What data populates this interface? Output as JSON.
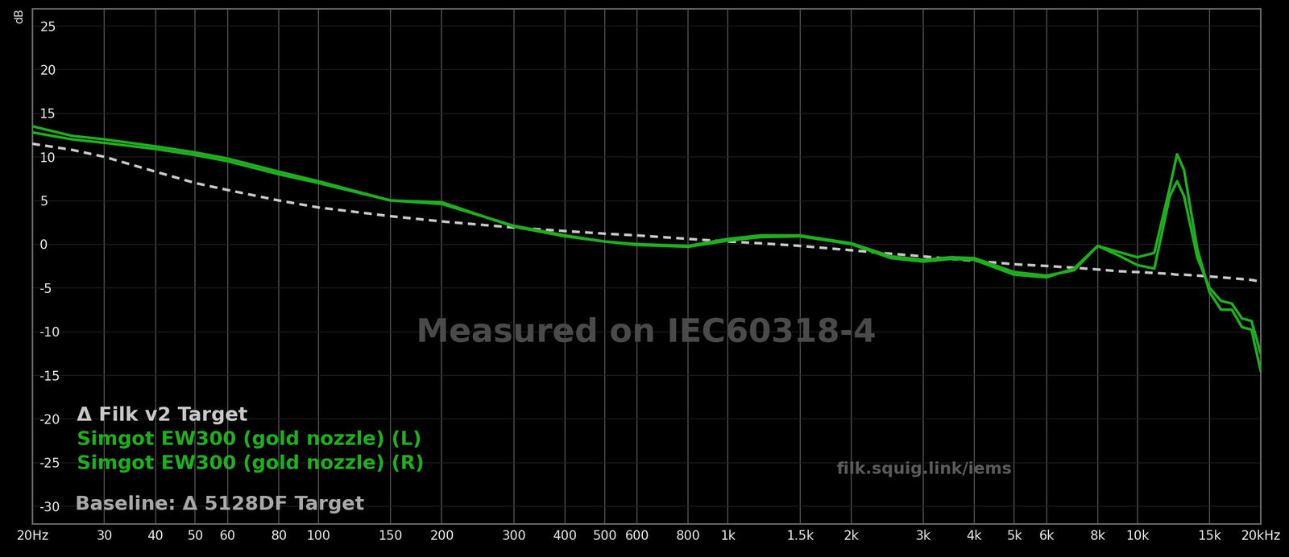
{
  "chart_data": {
    "type": "line",
    "y_label": "dB",
    "annotations": [
      "Measured on IEC60318-4",
      "Baseline: Δ 5128DF Target",
      "filk.squig.link/iems"
    ],
    "log": "x",
    "grid": true,
    "legend": "lower left",
    "xlim": [
      20,
      20000
    ],
    "ylim": [
      -32,
      27
    ],
    "xticks": [
      {
        "value": 20,
        "label": "20Hz"
      },
      30,
      40,
      50,
      60,
      80,
      100,
      150,
      200,
      300,
      400,
      500,
      600,
      800,
      {
        "value": 1000,
        "label": "1k"
      },
      {
        "value": 1500,
        "label": "1.5k"
      },
      {
        "value": 2000,
        "label": "2k"
      },
      {
        "value": 3000,
        "label": "3k"
      },
      {
        "value": 4000,
        "label": "4k"
      },
      {
        "value": 5000,
        "label": "5k"
      },
      {
        "value": 6000,
        "label": "6k"
      },
      {
        "value": 8000,
        "label": "8k"
      },
      {
        "value": 10000,
        "label": "10k"
      },
      {
        "value": 15000,
        "label": "15k"
      },
      {
        "value": 20000,
        "label": "20kHz"
      }
    ],
    "yticks": [
      -30,
      -25,
      -20,
      -15,
      -10,
      -5,
      0,
      5,
      10,
      15,
      20,
      25
    ],
    "x": [
      20,
      25,
      30,
      40,
      50,
      60,
      80,
      100,
      150,
      200,
      300,
      400,
      500,
      600,
      800,
      1000,
      1200,
      1500,
      2000,
      2500,
      3000,
      3500,
      4000,
      5000,
      6000,
      7000,
      8000,
      9000,
      10000,
      11000,
      12000,
      12500,
      13000,
      14000,
      15000,
      16000,
      17000,
      18000,
      19000,
      20000
    ],
    "series": [
      {
        "name": "Δ Filk v2 Target",
        "color": "#c8c8c8",
        "line_style": "dashed",
        "values": [
          11.5,
          10.8,
          10.0,
          8.3,
          7.0,
          6.2,
          5.0,
          4.2,
          3.2,
          2.6,
          1.9,
          1.5,
          1.2,
          1.0,
          0.6,
          0.3,
          0.1,
          -0.2,
          -0.7,
          -1.1,
          -1.4,
          -1.7,
          -1.9,
          -2.3,
          -2.5,
          -2.7,
          -2.9,
          -3.1,
          -3.2,
          -3.3,
          -3.4,
          -3.5,
          -3.5,
          -3.6,
          -3.7,
          -3.8,
          -3.9,
          -4.0,
          -4.1,
          -4.3
        ]
      },
      {
        "name": "Simgot EW300 (gold nozzle) (L)",
        "color": "#1fae1f",
        "line_style": "solid",
        "values": [
          13.5,
          12.4,
          12.0,
          11.2,
          10.5,
          9.8,
          8.3,
          7.2,
          5.0,
          4.6,
          2.1,
          1.0,
          0.3,
          -0.1,
          -0.3,
          0.4,
          0.8,
          0.9,
          0.0,
          -1.6,
          -2.0,
          -1.7,
          -1.8,
          -3.5,
          -3.8,
          -2.8,
          -0.2,
          -0.9,
          -1.5,
          -1.0,
          6.5,
          10.3,
          8.5,
          -0.5,
          -5.5,
          -7.5,
          -7.5,
          -9.5,
          -9.8,
          -14.5
        ]
      },
      {
        "name": "Simgot EW300 (gold nozzle) (R)",
        "color": "#1fae1f",
        "line_style": "solid",
        "values": [
          12.8,
          12.0,
          11.6,
          10.9,
          10.2,
          9.5,
          8.0,
          7.0,
          5.0,
          4.8,
          2.0,
          0.9,
          0.3,
          0.0,
          -0.2,
          0.6,
          1.0,
          1.0,
          0.1,
          -1.4,
          -1.8,
          -1.5,
          -1.6,
          -3.2,
          -3.6,
          -3.0,
          -0.2,
          -1.3,
          -2.4,
          -2.8,
          5.5,
          7.2,
          5.5,
          -1.5,
          -5.0,
          -6.5,
          -6.8,
          -8.5,
          -8.8,
          -12.5
        ]
      }
    ]
  }
}
